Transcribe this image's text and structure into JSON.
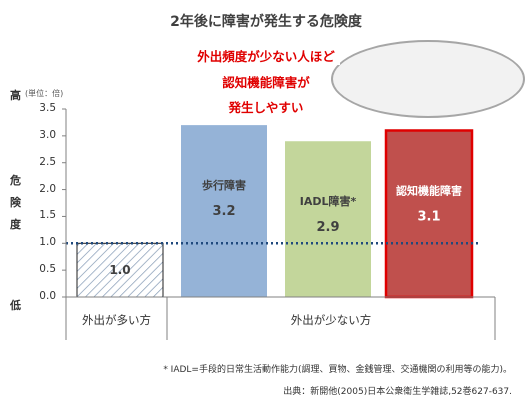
{
  "chart_data": {
    "type": "bar",
    "title": "2年後に障害が発生する危険度",
    "unit": "(単位：倍)",
    "y_high_label": "高",
    "y_low_label": "低",
    "y_axis_label": [
      "危",
      "険",
      "度"
    ],
    "ylim": [
      0,
      3.5
    ],
    "yticks": [
      "0.0",
      "0.5",
      "1.0",
      "1.5",
      "2.0",
      "2.5",
      "3.0",
      "3.5"
    ],
    "bars": [
      {
        "name": "",
        "value": 1.0,
        "label": "1.0",
        "fill": "hatch-blue",
        "group": 0
      },
      {
        "name": "歩行障害",
        "value": 3.2,
        "label": "3.2",
        "fill": "#95b3d7",
        "group": 1
      },
      {
        "name": "IADL障害*",
        "value": 2.9,
        "label": "2.9",
        "fill": "#c3d69b",
        "group": 1
      },
      {
        "name": "認知機能障害",
        "value": 3.1,
        "label": "3.1",
        "fill": "#c0504d",
        "border": "#e00000",
        "group": 1
      }
    ],
    "reference_line": {
      "value": 1.0,
      "style": "dotted",
      "color": "#1f497d"
    },
    "groups": [
      "外出が多い方",
      "外出が少ない方"
    ],
    "grid": false
  },
  "callout": {
    "lines": [
      "外出頻度が少ない人ほど",
      "認知機能障害が",
      "発生しやすい"
    ]
  },
  "footnote": "* IADL=手段的日常生活動作能力(調理、買物、金銭管理、交通機関の利用等の能力)。",
  "source": "出典：新開他(2005)日本公衆衛生学雑誌,52巻627-637."
}
